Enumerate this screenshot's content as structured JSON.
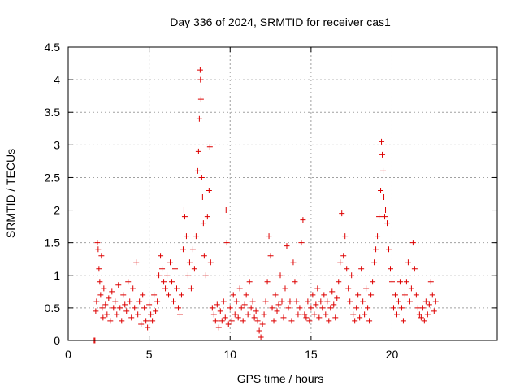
{
  "chart_data": {
    "type": "scatter",
    "title": "Day 336 of 2024, SRMTID for receiver cas1",
    "xlabel": "GPS time / hours",
    "ylabel": "SRMTID / TECUs",
    "xlim": [
      0,
      26.5
    ],
    "ylim": [
      0,
      4.5
    ],
    "xticks": [
      0,
      5,
      10,
      15,
      20
    ],
    "xtick_labels": [
      "0",
      "5",
      "10",
      "15",
      "20"
    ],
    "yticks": [
      0,
      0.5,
      1,
      1.5,
      2,
      2.5,
      3,
      3.5,
      4,
      4.5
    ],
    "ytick_labels": [
      "0",
      "0.5",
      "1",
      "1.5",
      "2",
      "2.5",
      "3",
      "3.5",
      "4",
      "4.5"
    ],
    "grid": true,
    "marker": "plus",
    "color": "#dd0000",
    "series": [
      {
        "name": "SRMTID",
        "points": [
          [
            1.6,
            0.0
          ],
          [
            1.65,
            0.0
          ],
          [
            1.7,
            0.45
          ],
          [
            1.75,
            0.6
          ],
          [
            1.8,
            1.5
          ],
          [
            1.85,
            1.4
          ],
          [
            1.9,
            1.1
          ],
          [
            1.95,
            0.9
          ],
          [
            2.0,
            0.7
          ],
          [
            2.05,
            1.3
          ],
          [
            2.1,
            0.5
          ],
          [
            2.15,
            0.35
          ],
          [
            2.2,
            0.8
          ],
          [
            2.3,
            0.55
          ],
          [
            2.4,
            0.4
          ],
          [
            2.5,
            0.65
          ],
          [
            2.6,
            0.3
          ],
          [
            2.7,
            0.75
          ],
          [
            2.8,
            0.5
          ],
          [
            2.9,
            0.6
          ],
          [
            3.0,
            0.4
          ],
          [
            3.1,
            0.85
          ],
          [
            3.2,
            0.5
          ],
          [
            3.3,
            0.3
          ],
          [
            3.4,
            0.7
          ],
          [
            3.5,
            0.55
          ],
          [
            3.6,
            0.45
          ],
          [
            3.7,
            0.9
          ],
          [
            3.8,
            0.6
          ],
          [
            3.9,
            0.35
          ],
          [
            4.0,
            0.8
          ],
          [
            4.1,
            0.5
          ],
          [
            4.2,
            1.2
          ],
          [
            4.3,
            0.4
          ],
          [
            4.4,
            0.6
          ],
          [
            4.5,
            0.25
          ],
          [
            4.6,
            0.7
          ],
          [
            4.7,
            0.5
          ],
          [
            4.8,
            0.3
          ],
          [
            4.9,
            0.2
          ],
          [
            5.0,
            0.55
          ],
          [
            5.1,
            0.4
          ],
          [
            5.2,
            0.3
          ],
          [
            5.3,
            0.7
          ],
          [
            5.4,
            0.45
          ],
          [
            5.5,
            0.6
          ],
          [
            5.6,
            1.0
          ],
          [
            5.7,
            1.3
          ],
          [
            5.8,
            1.1
          ],
          [
            5.9,
            0.9
          ],
          [
            6.0,
            0.8
          ],
          [
            6.1,
            1.0
          ],
          [
            6.2,
            0.7
          ],
          [
            6.3,
            1.2
          ],
          [
            6.4,
            0.9
          ],
          [
            6.5,
            0.6
          ],
          [
            6.6,
            1.1
          ],
          [
            6.7,
            0.8
          ],
          [
            6.8,
            0.5
          ],
          [
            6.9,
            0.4
          ],
          [
            7.0,
            0.7
          ],
          [
            7.1,
            1.4
          ],
          [
            7.15,
            2.0
          ],
          [
            7.2,
            1.9
          ],
          [
            7.3,
            1.6
          ],
          [
            7.4,
            1.0
          ],
          [
            7.5,
            1.2
          ],
          [
            7.6,
            0.8
          ],
          [
            7.7,
            1.4
          ],
          [
            7.8,
            1.1
          ],
          [
            7.9,
            1.6
          ],
          [
            8.0,
            2.6
          ],
          [
            8.05,
            2.9
          ],
          [
            8.1,
            3.4
          ],
          [
            8.15,
            4.15
          ],
          [
            8.17,
            4.0
          ],
          [
            8.2,
            3.7
          ],
          [
            8.25,
            2.5
          ],
          [
            8.3,
            2.2
          ],
          [
            8.35,
            1.8
          ],
          [
            8.4,
            1.3
          ],
          [
            8.5,
            1.0
          ],
          [
            8.6,
            1.9
          ],
          [
            8.7,
            2.3
          ],
          [
            8.75,
            2.97
          ],
          [
            8.8,
            1.2
          ],
          [
            8.9,
            0.5
          ],
          [
            9.0,
            0.4
          ],
          [
            9.1,
            0.3
          ],
          [
            9.2,
            0.55
          ],
          [
            9.3,
            0.2
          ],
          [
            9.4,
            0.45
          ],
          [
            9.5,
            0.3
          ],
          [
            9.6,
            0.6
          ],
          [
            9.7,
            0.35
          ],
          [
            9.75,
            2.0
          ],
          [
            9.8,
            1.5
          ],
          [
            9.9,
            0.25
          ],
          [
            10.0,
            0.5
          ],
          [
            10.1,
            0.3
          ],
          [
            10.2,
            0.7
          ],
          [
            10.3,
            0.4
          ],
          [
            10.4,
            0.6
          ],
          [
            10.5,
            0.35
          ],
          [
            10.6,
            0.8
          ],
          [
            10.7,
            0.5
          ],
          [
            10.8,
            0.3
          ],
          [
            10.9,
            0.55
          ],
          [
            11.0,
            0.7
          ],
          [
            11.1,
            0.4
          ],
          [
            11.2,
            0.9
          ],
          [
            11.3,
            0.5
          ],
          [
            11.4,
            0.6
          ],
          [
            11.5,
            0.35
          ],
          [
            11.6,
            0.45
          ],
          [
            11.7,
            0.3
          ],
          [
            11.8,
            0.15
          ],
          [
            11.9,
            0.05
          ],
          [
            12.0,
            0.25
          ],
          [
            12.1,
            0.4
          ],
          [
            12.2,
            0.6
          ],
          [
            12.3,
            0.9
          ],
          [
            12.4,
            1.6
          ],
          [
            12.5,
            1.3
          ],
          [
            12.6,
            0.5
          ],
          [
            12.7,
            0.3
          ],
          [
            12.8,
            0.7
          ],
          [
            12.9,
            0.45
          ],
          [
            13.0,
            0.55
          ],
          [
            13.1,
            1.0
          ],
          [
            13.2,
            0.6
          ],
          [
            13.3,
            0.35
          ],
          [
            13.4,
            0.8
          ],
          [
            13.5,
            1.45
          ],
          [
            13.6,
            0.5
          ],
          [
            13.7,
            0.6
          ],
          [
            13.8,
            0.3
          ],
          [
            13.9,
            1.2
          ],
          [
            14.0,
            0.9
          ],
          [
            14.1,
            0.6
          ],
          [
            14.2,
            0.4
          ],
          [
            14.3,
            0.5
          ],
          [
            14.4,
            1.5
          ],
          [
            14.5,
            1.85
          ],
          [
            14.6,
            0.4
          ],
          [
            14.7,
            0.35
          ],
          [
            14.8,
            0.6
          ],
          [
            14.9,
            0.3
          ],
          [
            15.0,
            0.5
          ],
          [
            15.1,
            0.7
          ],
          [
            15.2,
            0.4
          ],
          [
            15.3,
            0.55
          ],
          [
            15.4,
            0.8
          ],
          [
            15.5,
            0.35
          ],
          [
            15.6,
            0.6
          ],
          [
            15.7,
            0.5
          ],
          [
            15.8,
            0.7
          ],
          [
            15.9,
            0.4
          ],
          [
            16.0,
            0.6
          ],
          [
            16.1,
            0.3
          ],
          [
            16.2,
            0.5
          ],
          [
            16.3,
            0.75
          ],
          [
            16.4,
            0.55
          ],
          [
            16.5,
            0.35
          ],
          [
            16.6,
            0.65
          ],
          [
            16.7,
            0.9
          ],
          [
            16.8,
            1.2
          ],
          [
            16.9,
            1.95
          ],
          [
            17.0,
            1.3
          ],
          [
            17.1,
            1.6
          ],
          [
            17.2,
            1.1
          ],
          [
            17.3,
            0.8
          ],
          [
            17.4,
            0.6
          ],
          [
            17.5,
            1.0
          ],
          [
            17.6,
            0.4
          ],
          [
            17.7,
            0.3
          ],
          [
            17.8,
            0.5
          ],
          [
            17.9,
            0.7
          ],
          [
            18.0,
            0.35
          ],
          [
            18.1,
            1.1
          ],
          [
            18.2,
            0.6
          ],
          [
            18.3,
            0.4
          ],
          [
            18.4,
            0.8
          ],
          [
            18.5,
            0.5
          ],
          [
            18.6,
            0.3
          ],
          [
            18.7,
            0.7
          ],
          [
            18.8,
            0.9
          ],
          [
            18.9,
            1.2
          ],
          [
            19.0,
            1.4
          ],
          [
            19.1,
            1.6
          ],
          [
            19.2,
            1.9
          ],
          [
            19.3,
            2.3
          ],
          [
            19.35,
            3.05
          ],
          [
            19.4,
            2.85
          ],
          [
            19.45,
            2.6
          ],
          [
            19.5,
            2.2
          ],
          [
            19.55,
            1.9
          ],
          [
            19.6,
            2.0
          ],
          [
            19.7,
            1.8
          ],
          [
            19.8,
            1.4
          ],
          [
            19.9,
            1.1
          ],
          [
            20.0,
            0.9
          ],
          [
            20.1,
            0.5
          ],
          [
            20.2,
            0.7
          ],
          [
            20.3,
            0.4
          ],
          [
            20.4,
            0.6
          ],
          [
            20.5,
            0.9
          ],
          [
            20.6,
            0.5
          ],
          [
            20.7,
            0.3
          ],
          [
            20.8,
            0.7
          ],
          [
            20.9,
            0.9
          ],
          [
            21.0,
            1.2
          ],
          [
            21.1,
            0.6
          ],
          [
            21.2,
            0.8
          ],
          [
            21.3,
            1.5
          ],
          [
            21.4,
            1.1
          ],
          [
            21.5,
            0.7
          ],
          [
            21.6,
            0.5
          ],
          [
            21.7,
            0.4
          ],
          [
            21.8,
            0.35
          ],
          [
            21.9,
            0.5
          ],
          [
            22.0,
            0.3
          ],
          [
            22.1,
            0.6
          ],
          [
            22.2,
            0.4
          ],
          [
            22.3,
            0.55
          ],
          [
            22.4,
            0.9
          ],
          [
            22.5,
            0.7
          ],
          [
            22.6,
            0.45
          ],
          [
            22.7,
            0.6
          ]
        ]
      }
    ]
  }
}
